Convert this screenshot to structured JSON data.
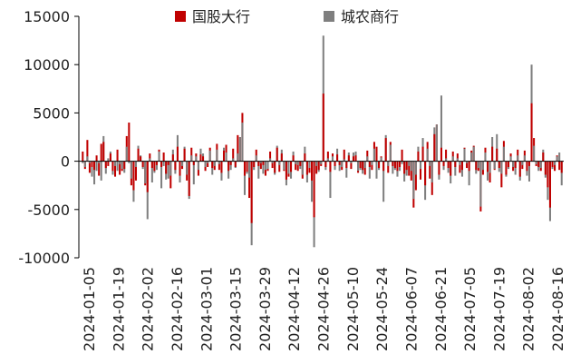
{
  "chart_data": {
    "type": "bar",
    "title": "",
    "xlabel": "",
    "ylabel": "",
    "ylim": [
      -10000,
      15000
    ],
    "y_ticks": [
      15000,
      10000,
      5000,
      0,
      -5000,
      -10000
    ],
    "y_tick_labels": [
      "15000",
      "10000",
      "5000",
      "0",
      "-5000",
      "-10000"
    ],
    "x_tick_labels": [
      "2024-01-05",
      "2024-01-19",
      "2024-02-02",
      "2024-02-16",
      "2024-03-01",
      "2024-03-15",
      "2024-03-29",
      "2024-04-12",
      "2024-04-26",
      "2024-05-10",
      "2024-05-24",
      "2024-06-07",
      "2024-06-21",
      "2024-07-05",
      "2024-07-19",
      "2024-08-02",
      "2024-08-16"
    ],
    "legend_position": "top",
    "grid": false,
    "series": [
      {
        "name": "国股大行",
        "color": "#C00000",
        "values": [
          1000,
          -800,
          2200,
          -1200,
          -600,
          -900,
          600,
          -1500,
          1800,
          2000,
          -700,
          -500,
          800,
          -1000,
          -1600,
          1200,
          -1400,
          -1000,
          -800,
          2600,
          4000,
          -2500,
          -3000,
          -2000,
          1300,
          500,
          -600,
          -2500,
          -3200,
          800,
          -700,
          -1000,
          -400,
          1200,
          -600,
          900,
          -1300,
          -400,
          -2800,
          700,
          -900,
          1500,
          -1500,
          -800,
          1300,
          -2000,
          -3600,
          1400,
          -400,
          800,
          -1500,
          700,
          500,
          -1000,
          -600,
          1400,
          -700,
          -900,
          1800,
          -900,
          -1200,
          1100,
          1700,
          -1000,
          -400,
          1300,
          -600,
          2700,
          2500,
          5000,
          -1500,
          -1100,
          -3800,
          -6400,
          -600,
          1200,
          -500,
          -800,
          -400,
          -1500,
          -1000,
          1000,
          -700,
          -1200,
          1400,
          -1100,
          800,
          -1000,
          -1900,
          -1600,
          -1100,
          600,
          -900,
          -1000,
          -500,
          -1800,
          800,
          -1400,
          -1200,
          -2000,
          -5800,
          -1300,
          -900,
          -500,
          7000,
          -600,
          1000,
          -1100,
          800,
          -500,
          700,
          -400,
          -900,
          1200,
          -700,
          600,
          -800,
          500,
          600,
          -1200,
          -700,
          -900,
          -1400,
          1100,
          -600,
          -900,
          2000,
          1500,
          -700,
          500,
          -1000,
          2400,
          -1200,
          2000,
          -500,
          -700,
          -1000,
          -600,
          1200,
          -1300,
          -900,
          -1500,
          -2000,
          -4800,
          -3000,
          1000,
          -1900,
          1500,
          -2500,
          2000,
          -1800,
          -3500,
          2800,
          3800,
          -1400,
          1400,
          -500,
          1200,
          -700,
          -1500,
          1000,
          -600,
          800,
          -1200,
          -900,
          1400,
          -700,
          -1000,
          1100,
          1600,
          -900,
          -1000,
          -5200,
          -1400,
          1400,
          -1100,
          -2200,
          1500,
          -900,
          1300,
          -700,
          -2700,
          2100,
          -1400,
          -600,
          800,
          -1000,
          -700,
          1200,
          -1600,
          -800,
          1100,
          -1000,
          -500,
          6000,
          2400,
          -500,
          -600,
          -1000,
          900,
          -1400,
          -2700,
          -4800,
          -600,
          -1000,
          600,
          -900,
          -1200
        ],
        "labels": [],
        "note": ""
      },
      {
        "name": "城农商行",
        "color": "#7F7F7F",
        "values": [
          -200,
          -600,
          500,
          -200,
          -1600,
          -2400,
          -1000,
          -200,
          -2000,
          2600,
          -1300,
          300,
          1000,
          -1400,
          -500,
          -1000,
          -300,
          -800,
          -1200,
          1500,
          -200,
          -1800,
          -4200,
          -600,
          1600,
          600,
          -800,
          -2300,
          -6000,
          300,
          -2200,
          -1200,
          -900,
          1000,
          -2800,
          -500,
          -1900,
          -1800,
          -1500,
          1200,
          -1300,
          2700,
          -2200,
          -500,
          1500,
          -1400,
          -3900,
          600,
          -2400,
          500,
          -900,
          1300,
          800,
          -600,
          -200,
          1100,
          -1400,
          -500,
          1200,
          -300,
          -2000,
          1400,
          900,
          -1800,
          -900,
          300,
          -700,
          800,
          2500,
          4000,
          -3500,
          -1300,
          -1700,
          -8700,
          -900,
          600,
          -1800,
          -200,
          -1300,
          -900,
          -800,
          300,
          -200,
          -1400,
          1600,
          -400,
          1200,
          -900,
          -2500,
          -1300,
          -1800,
          1000,
          -300,
          -400,
          -800,
          -1400,
          1500,
          -2200,
          -700,
          -4200,
          -8900,
          -500,
          -1100,
          -300,
          13000,
          -900,
          300,
          -3800,
          500,
          -900,
          1300,
          -1000,
          -600,
          200,
          -1700,
          900,
          -200,
          900,
          1000,
          -1000,
          -900,
          -1300,
          -700,
          500,
          -1800,
          -400,
          1300,
          -1800,
          -900,
          400,
          -4200,
          2700,
          -500,
          1700,
          -1300,
          -900,
          -1600,
          -1000,
          -300,
          -2100,
          -1500,
          -500,
          -1000,
          -3900,
          -1400,
          1500,
          -800,
          2400,
          -4000,
          1300,
          -500,
          -2200,
          3500,
          3800,
          -1900,
          6800,
          -900,
          300,
          -1200,
          -2300,
          500,
          -1500,
          300,
          -400,
          -1600,
          1300,
          -200,
          -2500,
          900,
          1500,
          -1300,
          -700,
          -4700,
          -900,
          900,
          -2000,
          -1200,
          2500,
          -800,
          2800,
          -1100,
          -1300,
          1500,
          -1600,
          -800,
          500,
          -600,
          -1400,
          600,
          -2000,
          -400,
          600,
          -1500,
          -2100,
          10000,
          1600,
          -300,
          -1000,
          -700,
          1200,
          -1700,
          -4000,
          -6200,
          -800,
          -400,
          500,
          900,
          -2500
        ],
        "labels": [],
        "note": ""
      }
    ]
  }
}
